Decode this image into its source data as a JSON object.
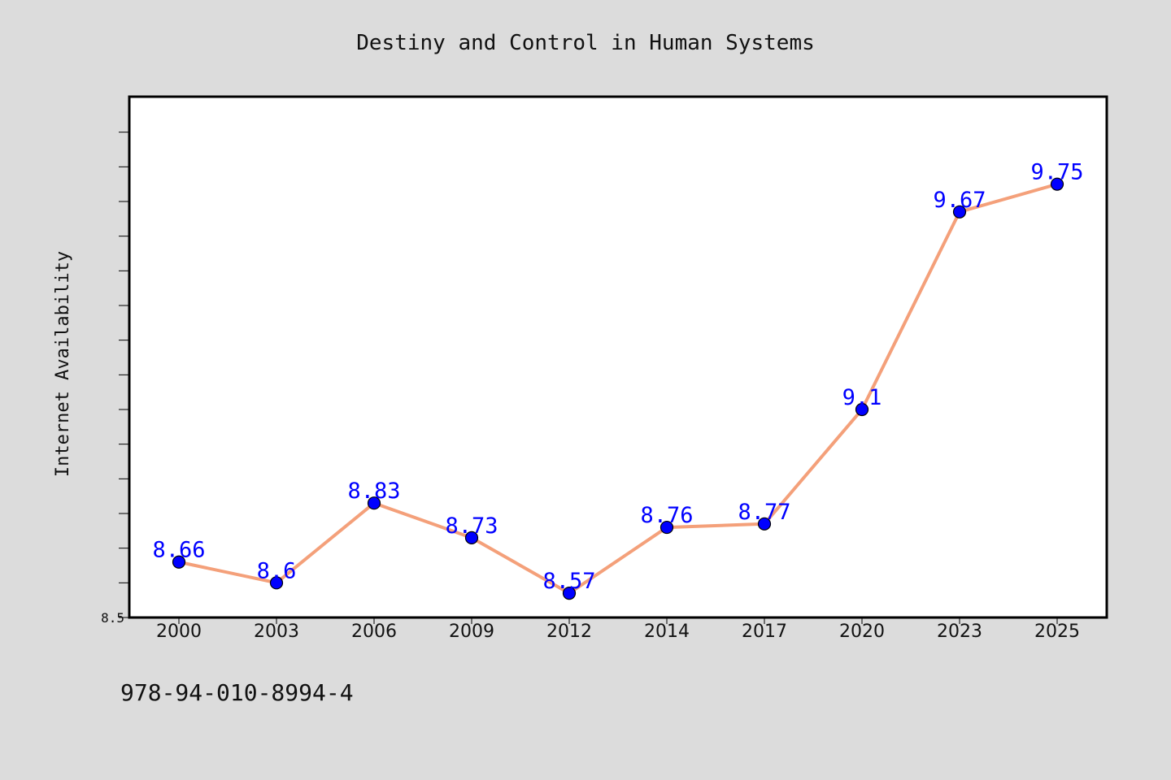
{
  "figure": {
    "background": "#dcdcdc",
    "footer_text": "978-94-010-8994-4"
  },
  "chart_data": {
    "type": "line",
    "title": "Destiny and Control in Human Systems",
    "xlabel": "",
    "ylabel": "Internet Availability",
    "categories": [
      "2000",
      "2003",
      "2006",
      "2009",
      "2012",
      "2014",
      "2017",
      "2020",
      "2023",
      "2025"
    ],
    "series": [
      {
        "values": [
          8.66,
          8.6,
          8.83,
          8.73,
          8.57,
          8.76,
          8.77,
          9.1,
          9.67,
          9.75
        ],
        "data_labels": [
          "8.66",
          "8.6",
          "8.83",
          "8.73",
          "8.57",
          "8.76",
          "8.77",
          "9.1",
          "9.67",
          "9.75"
        ],
        "line_color": "#f4a07a",
        "marker_color": "#0000ff",
        "marker_edge_color": "#000000",
        "label_color": "#0000ff"
      }
    ],
    "ylim": [
      8.5,
      10.0
    ],
    "y_tick_labels": [
      {
        "value": 8.5,
        "label": "8.5"
      }
    ],
    "y_minor_tick_step": 0.1,
    "grid": false,
    "legend": "none",
    "plot_background": "#ffffff",
    "frame_color": "#000000"
  }
}
